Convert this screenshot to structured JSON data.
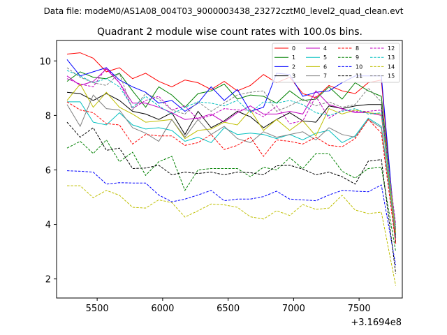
{
  "figure": {
    "suptitle": "Data file: modeM0/AS1A08_004T03_9000003438_23272cztM0_level2_quad_clean.evt"
  },
  "chart_data": {
    "type": "line",
    "title": "Quadrant 2 module wise count rates with 100.0s bins.",
    "xlabel": "",
    "ylabel": "",
    "x_offset_label": "+3.1694e8",
    "x_offset": 316940000,
    "xlim": [
      5190,
      7830
    ],
    "ylim": [
      1.3,
      10.75
    ],
    "xticks": [
      5500,
      6000,
      6500,
      7000,
      7500
    ],
    "yticks": [
      2,
      4,
      6,
      8,
      10
    ],
    "grid": false,
    "legend": {
      "placement": "top-right",
      "columns": 4
    },
    "x": [
      5270,
      5370,
      5470,
      5570,
      5670,
      5770,
      5870,
      5970,
      6070,
      6170,
      6270,
      6370,
      6470,
      6570,
      6670,
      6770,
      6870,
      6970,
      7070,
      7170,
      7270,
      7370,
      7470,
      7570,
      7670,
      7780
    ],
    "series": [
      {
        "name": "0",
        "color": "#ff0000",
        "dash": "solid",
        "values": [
          10.25,
          10.3,
          10.1,
          9.6,
          9.75,
          9.35,
          9.55,
          9.25,
          9.05,
          9.3,
          9.2,
          8.95,
          9.25,
          8.9,
          9.1,
          9.5,
          9.2,
          9.4,
          8.8,
          8.65,
          9.1,
          8.9,
          8.8,
          9.2,
          9.3,
          3.3
        ]
      },
      {
        "name": "1",
        "color": "#008000",
        "dash": "solid",
        "values": [
          9.25,
          9.6,
          9.4,
          9.35,
          9.55,
          8.9,
          8.3,
          9.05,
          8.75,
          8.3,
          8.8,
          8.9,
          9.15,
          8.6,
          8.75,
          8.7,
          8.45,
          8.9,
          8.55,
          8.6,
          9.05,
          8.6,
          9.2,
          8.9,
          8.7,
          3.6
        ]
      },
      {
        "name": "2",
        "color": "#0000ff",
        "dash": "solid",
        "values": [
          10.05,
          9.45,
          9.6,
          9.75,
          9.3,
          9.05,
          8.85,
          8.45,
          8.55,
          8.15,
          8.45,
          9.05,
          8.55,
          8.95,
          8.15,
          8.3,
          9.55,
          9.5,
          8.7,
          8.85,
          8.9,
          9.2,
          9.45,
          9.45,
          9.45,
          3.5
        ]
      },
      {
        "name": "3",
        "color": "#000000",
        "dash": "solid",
        "values": [
          8.85,
          8.8,
          8.55,
          8.8,
          8.55,
          8.15,
          8.05,
          7.85,
          8.1,
          7.3,
          8.15,
          7.55,
          7.8,
          8.15,
          7.95,
          7.55,
          7.85,
          8.1,
          7.8,
          7.75,
          8.35,
          8.25,
          8.35,
          8.4,
          8.4,
          3.3
        ]
      },
      {
        "name": "4",
        "color": "#c000c0",
        "dash": "solid",
        "values": [
          9.45,
          9.1,
          9.25,
          9.7,
          9.2,
          8.45,
          8.45,
          8.3,
          8.1,
          7.85,
          7.9,
          8.05,
          7.75,
          8.1,
          8.35,
          8.05,
          8.05,
          8.15,
          8.05,
          8.9,
          8.4,
          8.25,
          8.1,
          8.1,
          8.0,
          3.8
        ]
      },
      {
        "name": "5",
        "color": "#00bfbf",
        "dash": "solid",
        "values": [
          8.5,
          8.5,
          7.75,
          7.65,
          8.1,
          7.65,
          7.5,
          7.55,
          7.45,
          7.05,
          7.2,
          7.0,
          7.55,
          7.3,
          7.35,
          7.3,
          7.15,
          7.3,
          7.1,
          7.35,
          7.45,
          7.0,
          7.25,
          7.9,
          7.6,
          3.7
        ]
      },
      {
        "name": "6",
        "color": "#bfbf00",
        "dash": "solid",
        "values": [
          8.55,
          9.15,
          8.3,
          8.85,
          8.3,
          8.05,
          7.75,
          7.8,
          7.85,
          7.15,
          7.45,
          7.5,
          7.75,
          7.65,
          8.2,
          7.45,
          7.85,
          7.45,
          7.8,
          7.25,
          8.25,
          8.05,
          8.2,
          8.1,
          8.05,
          3.7
        ]
      },
      {
        "name": "7",
        "color": "#808080",
        "dash": "solid",
        "values": [
          8.4,
          7.6,
          8.75,
          8.25,
          8.2,
          7.55,
          7.35,
          7.05,
          7.85,
          7.2,
          7.85,
          7.3,
          7.6,
          7.15,
          7.0,
          7.4,
          7.2,
          7.3,
          7.4,
          7.1,
          7.55,
          7.3,
          7.2,
          7.85,
          7.55,
          3.5
        ]
      },
      {
        "name": "8",
        "color": "#ff0000",
        "dash": "dashed",
        "values": [
          8.5,
          8.2,
          8.1,
          7.7,
          7.65,
          6.95,
          7.3,
          7.25,
          7.25,
          6.9,
          7.0,
          7.3,
          6.75,
          6.9,
          7.2,
          6.5,
          7.1,
          7.05,
          6.95,
          7.2,
          6.9,
          6.85,
          7.15,
          7.85,
          7.35,
          3.3
        ]
      },
      {
        "name": "9",
        "color": "#008000",
        "dash": "dashed",
        "values": [
          6.8,
          7.05,
          6.6,
          7.1,
          6.3,
          6.65,
          5.8,
          6.3,
          6.5,
          5.25,
          6.0,
          6.05,
          6.05,
          6.05,
          5.75,
          6.1,
          6.0,
          6.45,
          6.05,
          6.6,
          6.6,
          5.95,
          5.7,
          6.05,
          6.1,
          3.0
        ]
      },
      {
        "name": "10",
        "color": "#0000ff",
        "dash": "dashed",
        "values": [
          5.97,
          5.95,
          5.92,
          5.48,
          5.53,
          5.52,
          5.52,
          5.08,
          4.83,
          4.93,
          5.08,
          5.25,
          4.87,
          4.93,
          4.93,
          5.02,
          5.22,
          4.93,
          4.9,
          4.87,
          5.08,
          5.25,
          5.22,
          5.2,
          5.45,
          2.5
        ]
      },
      {
        "name": "11",
        "color": "#000000",
        "dash": "dashed",
        "values": [
          7.75,
          7.2,
          7.55,
          6.72,
          6.8,
          6.05,
          6.07,
          6.17,
          5.82,
          5.92,
          5.87,
          5.92,
          5.82,
          5.92,
          5.9,
          5.82,
          6.15,
          6.17,
          6.03,
          5.82,
          5.92,
          5.75,
          5.48,
          6.32,
          6.38,
          2.2
        ]
      },
      {
        "name": "12",
        "color": "#c000c0",
        "dash": "dashed",
        "values": [
          9.35,
          9.15,
          9.05,
          9.75,
          9.2,
          8.25,
          8.55,
          8.7,
          8.2,
          8.35,
          7.85,
          8.0,
          8.25,
          8.2,
          8.2,
          7.95,
          8.35,
          7.7,
          7.8,
          8.7,
          7.9,
          8.2,
          8.15,
          8.15,
          8.2,
          4.0
        ]
      },
      {
        "name": "13",
        "color": "#00bfbf",
        "dash": "dashed",
        "values": [
          9.65,
          9.45,
          9.2,
          9.35,
          9.05,
          8.3,
          8.7,
          8.35,
          8.05,
          8.3,
          8.5,
          8.45,
          8.35,
          8.55,
          8.1,
          8.5,
          8.45,
          8.55,
          8.4,
          8.1,
          8.0,
          8.15,
          8.25,
          8.05,
          8.1,
          3.9
        ]
      },
      {
        "name": "14",
        "color": "#bfbf00",
        "dash": "dashed",
        "values": [
          5.42,
          5.42,
          4.98,
          5.25,
          5.07,
          4.63,
          4.6,
          4.9,
          4.8,
          4.27,
          4.5,
          4.75,
          4.72,
          4.63,
          4.28,
          4.2,
          4.5,
          4.33,
          4.73,
          4.55,
          4.6,
          5.07,
          4.53,
          4.4,
          4.45,
          1.75
        ]
      },
      {
        "name": "15",
        "color": "#808080",
        "dash": "dashed",
        "values": [
          9.75,
          9.4,
          9.2,
          9.1,
          9.55,
          8.2,
          8.8,
          8.6,
          8.2,
          8.05,
          8.5,
          8.15,
          8.45,
          8.75,
          8.85,
          8.9,
          8.15,
          8.35,
          8.6,
          8.35,
          8.5,
          8.3,
          8.4,
          9.0,
          8.5,
          3.8
        ]
      }
    ]
  }
}
